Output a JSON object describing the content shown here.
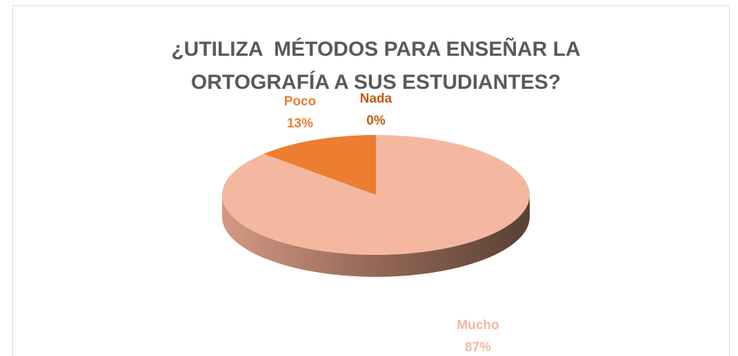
{
  "chart_data": {
    "type": "pie3d",
    "title": "¿UTILIZA  MÉTODOS PARA ENSEÑAR LA ORTOGRAFÍA A SUS ESTUDIANTES?",
    "categories": [
      "Mucho",
      "Poco",
      "Nada"
    ],
    "values": [
      87,
      13,
      0
    ],
    "value_labels": [
      "87%",
      "13%",
      "0%"
    ],
    "colors": [
      "#f4b8a0",
      "#ed7d31",
      "#c55a11"
    ]
  }
}
